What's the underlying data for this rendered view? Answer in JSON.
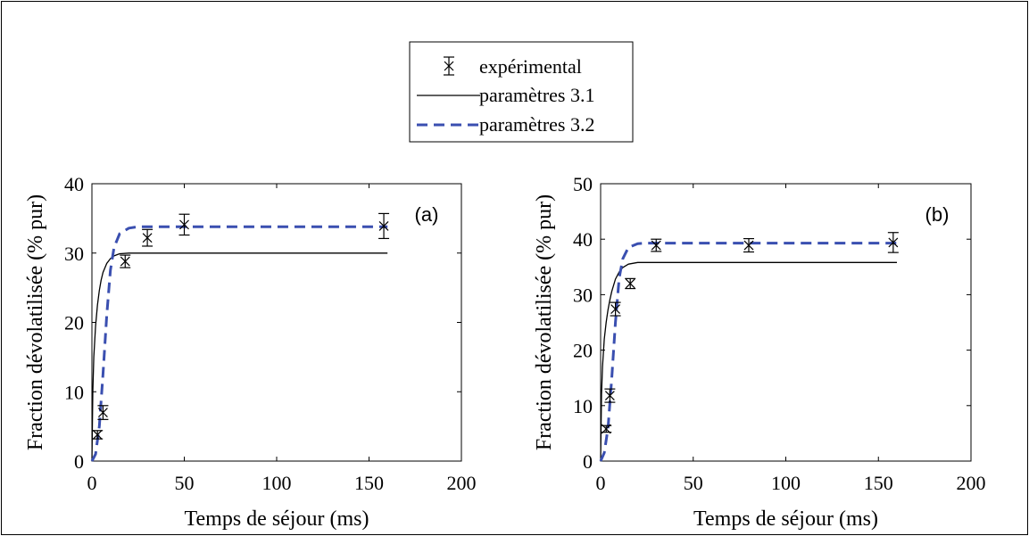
{
  "legend": {
    "placement": "top-center",
    "entries": [
      {
        "label": "expérimental",
        "style": "errorbar-x-marker",
        "color": "#000000"
      },
      {
        "label": "paramètres 3.1",
        "style": "solid-line",
        "color": "#000000"
      },
      {
        "label": "paramètres 3.2",
        "style": "dashed-line",
        "color": "#3a4fb0"
      }
    ]
  },
  "chart_data": [
    {
      "type": "line",
      "panel_label": "(a)",
      "xlabel": "Temps de séjour (ms)",
      "ylabel": "Fraction dévolatilisée (% pur)",
      "xlim": [
        0,
        200
      ],
      "ylim": [
        0,
        40
      ],
      "xticks": [
        0,
        50,
        100,
        150,
        200
      ],
      "yticks": [
        0,
        10,
        20,
        30,
        40
      ],
      "grid": false,
      "series": [
        {
          "name": "expérimental",
          "kind": "errorbar",
          "color": "#000000",
          "x": [
            3,
            6,
            18,
            30,
            50,
            158
          ],
          "y": [
            3.8,
            7.0,
            28.8,
            32.2,
            34.1,
            33.9
          ],
          "err": [
            0.6,
            1.0,
            0.9,
            1.2,
            1.5,
            1.8
          ]
        },
        {
          "name": "paramètres 3.1",
          "kind": "line",
          "style": "solid",
          "color": "#000000",
          "x": [
            0,
            0.5,
            1,
            2,
            3,
            4,
            5,
            6,
            8,
            10,
            12,
            15,
            20,
            30,
            50,
            100,
            160
          ],
          "y": [
            0,
            10,
            15,
            19.5,
            22.5,
            24.6,
            26.1,
            27.2,
            28.5,
            29.2,
            29.6,
            29.9,
            30.0,
            30.0,
            30.0,
            30.0,
            30.0
          ]
        },
        {
          "name": "paramètres 3.2",
          "kind": "line",
          "style": "dashed",
          "color": "#3a4fb0",
          "x": [
            0,
            2,
            4,
            6,
            8,
            10,
            12,
            15,
            20,
            25,
            30,
            50,
            100,
            160
          ],
          "y": [
            0,
            1,
            5,
            12.5,
            21,
            27.5,
            30.8,
            32.8,
            33.6,
            33.8,
            33.8,
            33.8,
            33.8,
            33.8
          ]
        }
      ]
    },
    {
      "type": "line",
      "panel_label": "(b)",
      "xlabel": "Temps de séjour (ms)",
      "ylabel": "Fraction dévolatilisée (% pur)",
      "xlim": [
        0,
        200
      ],
      "ylim": [
        0,
        50
      ],
      "xticks": [
        0,
        50,
        100,
        150,
        200
      ],
      "yticks": [
        0,
        10,
        20,
        30,
        40,
        50
      ],
      "grid": false,
      "series": [
        {
          "name": "expérimental",
          "kind": "errorbar",
          "color": "#000000",
          "x": [
            3,
            5,
            8,
            16,
            30,
            80,
            158
          ],
          "y": [
            5.8,
            11.8,
            27.4,
            32.0,
            38.9,
            38.9,
            39.4
          ],
          "err": [
            0.6,
            1.2,
            1.2,
            0.9,
            1.1,
            1.2,
            1.8
          ]
        },
        {
          "name": "paramètres 3.1",
          "kind": "line",
          "style": "solid",
          "color": "#000000",
          "x": [
            0,
            0.5,
            1,
            2,
            3,
            4,
            5,
            6,
            8,
            10,
            12,
            15,
            20,
            30,
            50,
            100,
            160
          ],
          "y": [
            0,
            12,
            17,
            22,
            25,
            27.3,
            29.1,
            30.6,
            32.8,
            34.1,
            34.9,
            35.5,
            35.8,
            35.8,
            35.8,
            35.8,
            35.8
          ]
        },
        {
          "name": "paramètres 3.2",
          "kind": "line",
          "style": "dashed",
          "color": "#3a4fb0",
          "x": [
            0,
            2,
            4,
            6,
            8,
            10,
            12,
            15,
            20,
            25,
            30,
            50,
            100,
            160
          ],
          "y": [
            0,
            1.5,
            6,
            15,
            25,
            33,
            36.5,
            38.5,
            39.2,
            39.3,
            39.3,
            39.3,
            39.3,
            39.3
          ]
        }
      ]
    }
  ]
}
